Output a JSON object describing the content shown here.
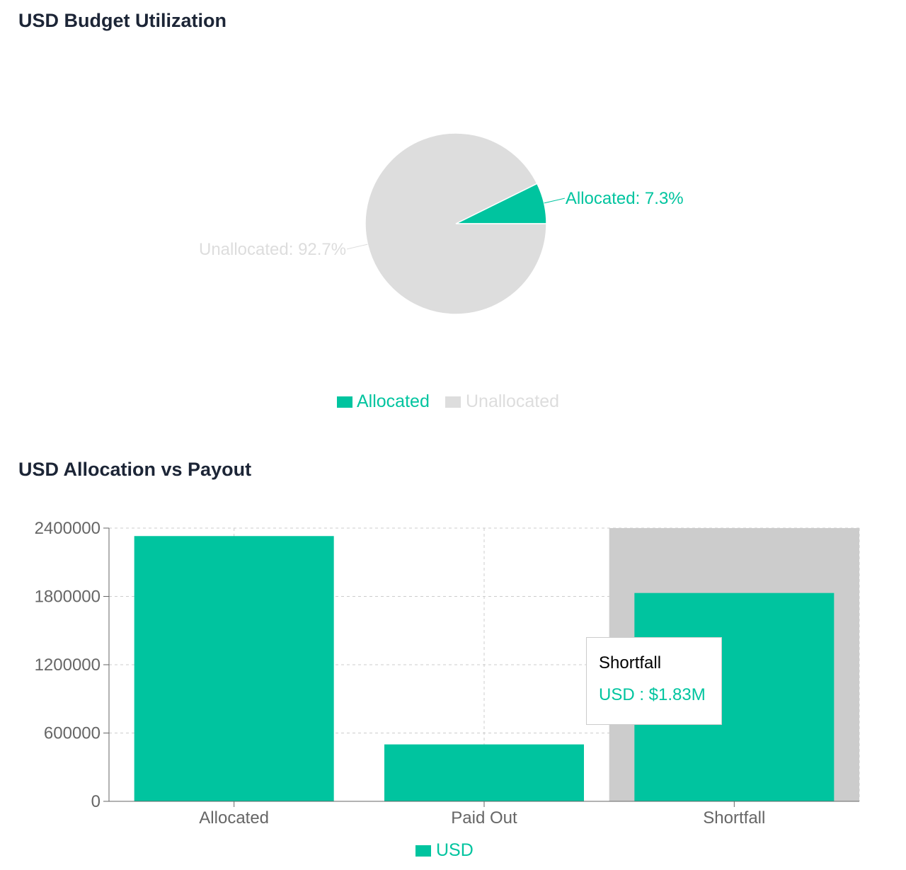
{
  "colors": {
    "allocated": "#00c49f",
    "unallocated": "#dddddd",
    "usd": "#00c49f",
    "grid": "#cccccc",
    "axis": "#666666",
    "cursor": "#cccccc",
    "title": "#1c2536"
  },
  "chart_data": [
    {
      "type": "pie",
      "title": "USD Budget Utilization",
      "slices": [
        {
          "name": "Allocated",
          "value": 7.3,
          "label": "Allocated: 7.3%"
        },
        {
          "name": "Unallocated",
          "value": 92.7,
          "label": "Unallocated: 92.7%"
        }
      ],
      "legend": {
        "position": "bottom-center",
        "items": [
          "Allocated",
          "Unallocated"
        ]
      }
    },
    {
      "type": "bar",
      "title": "USD Allocation vs Payout",
      "categories": [
        "Allocated",
        "Paid Out",
        "Shortfall"
      ],
      "series": [
        {
          "name": "USD",
          "values": [
            2330000,
            500000,
            1830000
          ]
        }
      ],
      "ylim": [
        0,
        2400000
      ],
      "yticks": [
        "0",
        "600000",
        "1200000",
        "1800000",
        "2400000"
      ],
      "grid": true,
      "legend": {
        "position": "bottom-center",
        "items": [
          "USD"
        ]
      },
      "tooltip": {
        "category": "Shortfall",
        "label": "Shortfall",
        "item": "USD : $1.83M"
      }
    }
  ]
}
